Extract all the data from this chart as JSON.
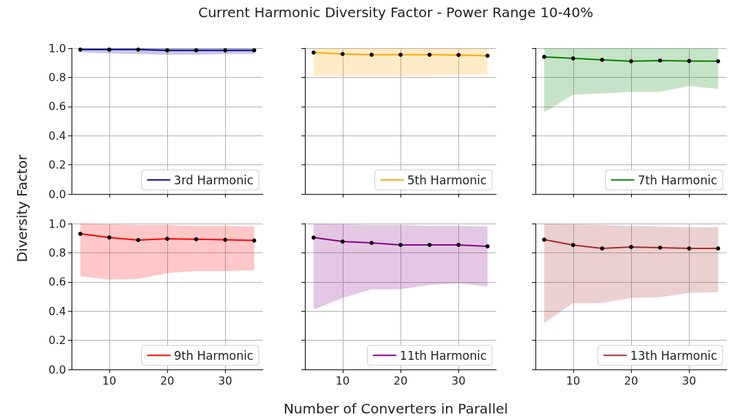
{
  "chart_data": [
    {
      "type": "line",
      "title": "Current Harmonic Diversity Factor - Power Range 10-40%",
      "ylabel": "Diversity Factor",
      "x": [
        5,
        10,
        15,
        20,
        25,
        30,
        35
      ],
      "xlim": [
        3.5,
        36.5
      ],
      "ylim": [
        0,
        1
      ],
      "xticks": [
        {
          "value": 10,
          "label": null
        },
        {
          "value": 20,
          "label": null
        },
        {
          "value": 30,
          "label": null
        }
      ],
      "yticks": [
        {
          "value": 0,
          "label": "0.0"
        },
        {
          "value": 0.2,
          "label": "0.2"
        },
        {
          "value": 0.4,
          "label": "0.4"
        },
        {
          "value": 0.6,
          "label": "0.6"
        },
        {
          "value": 0.8,
          "label": "0.8"
        },
        {
          "value": 1,
          "label": "1.0"
        }
      ],
      "grid": true,
      "legend": "bottom right",
      "marker": "circle",
      "tick_labels": "y",
      "series": [
        {
          "name": "3rd Harmonic",
          "color": "#00008b",
          "values": [
            0.99,
            0.99,
            0.99,
            0.985,
            0.985,
            0.985,
            0.985
          ],
          "lower": [
            0.97,
            0.965,
            0.96,
            0.955,
            0.955,
            0.96,
            0.96
          ],
          "upper": [
            1,
            1,
            1,
            1,
            1,
            1,
            1
          ]
        }
      ]
    },
    {
      "type": "line",
      "x": [
        5,
        10,
        15,
        20,
        25,
        30,
        35
      ],
      "xlim": [
        3.5,
        36.5
      ],
      "ylim": [
        0,
        1
      ],
      "xticks": [
        {
          "value": 10,
          "label": null
        },
        {
          "value": 20,
          "label": null
        },
        {
          "value": 30,
          "label": null
        }
      ],
      "yticks": [
        {
          "value": 0,
          "label": null
        },
        {
          "value": 0.2,
          "label": null
        },
        {
          "value": 0.4,
          "label": null
        },
        {
          "value": 0.6,
          "label": null
        },
        {
          "value": 0.8,
          "label": null
        },
        {
          "value": 1,
          "label": null
        }
      ],
      "grid": true,
      "legend": "bottom right",
      "marker": "circle",
      "tick_labels": false,
      "series": [
        {
          "name": "5th Harmonic",
          "color": "#ffa500",
          "values": [
            0.97,
            0.96,
            0.955,
            0.955,
            0.955,
            0.953,
            0.948
          ],
          "lower": [
            0.81,
            0.81,
            0.81,
            0.81,
            0.81,
            0.82,
            0.82
          ],
          "upper": [
            1,
            1,
            1,
            1,
            1,
            1,
            1
          ]
        }
      ]
    },
    {
      "type": "line",
      "x": [
        5,
        10,
        15,
        20,
        25,
        30,
        35
      ],
      "xlim": [
        3.5,
        36.5
      ],
      "ylim": [
        0,
        1
      ],
      "xticks": [
        {
          "value": 10,
          "label": null
        },
        {
          "value": 20,
          "label": null
        },
        {
          "value": 30,
          "label": null
        }
      ],
      "yticks": [
        {
          "value": 0,
          "label": null
        },
        {
          "value": 0.2,
          "label": null
        },
        {
          "value": 0.4,
          "label": null
        },
        {
          "value": 0.6,
          "label": null
        },
        {
          "value": 0.8,
          "label": null
        },
        {
          "value": 1,
          "label": null
        }
      ],
      "grid": true,
      "legend": "bottom right",
      "marker": "circle",
      "tick_labels": false,
      "series": [
        {
          "name": "7th Harmonic",
          "color": "#008000",
          "values": [
            0.94,
            0.93,
            0.92,
            0.91,
            0.915,
            0.912,
            0.91
          ],
          "lower": [
            0.56,
            0.68,
            0.69,
            0.7,
            0.7,
            0.74,
            0.72
          ],
          "upper": [
            1,
            1,
            1,
            1,
            1,
            1,
            1
          ]
        }
      ]
    },
    {
      "type": "line",
      "x": [
        5,
        10,
        15,
        20,
        25,
        30,
        35
      ],
      "xlim": [
        3.5,
        36.5
      ],
      "ylim": [
        0,
        1
      ],
      "xticks": [
        10,
        20,
        30
      ],
      "yticks": [
        {
          "value": 0,
          "label": "0.0"
        },
        {
          "value": 0.2,
          "label": "0.2"
        },
        {
          "value": 0.4,
          "label": "0.4"
        },
        {
          "value": 0.6,
          "label": "0.6"
        },
        {
          "value": 0.8,
          "label": "0.8"
        },
        {
          "value": 1,
          "label": "1.0"
        }
      ],
      "grid": true,
      "legend": "bottom right",
      "marker": "circle",
      "series": [
        {
          "name": "9th Harmonic",
          "color": "#ff0000",
          "values": [
            0.93,
            0.905,
            0.887,
            0.896,
            0.893,
            0.889,
            0.884
          ],
          "lower": [
            0.64,
            0.615,
            0.62,
            0.66,
            0.675,
            0.675,
            0.68
          ],
          "upper": [
            1,
            0.995,
            0.99,
            0.99,
            0.985,
            0.985,
            0.98
          ]
        }
      ]
    },
    {
      "type": "line",
      "xlabel": "Number of Converters in Parallel",
      "x": [
        5,
        10,
        15,
        20,
        25,
        30,
        35
      ],
      "xlim": [
        3.5,
        36.5
      ],
      "ylim": [
        0,
        1
      ],
      "xticks": [
        10,
        20,
        30
      ],
      "yticks": [
        {
          "value": 0,
          "label": null
        },
        {
          "value": 0.2,
          "label": null
        },
        {
          "value": 0.4,
          "label": null
        },
        {
          "value": 0.6,
          "label": null
        },
        {
          "value": 0.8,
          "label": null
        },
        {
          "value": 1,
          "label": null
        }
      ],
      "grid": true,
      "legend": "bottom right",
      "marker": "circle",
      "tick_labels": "x",
      "series": [
        {
          "name": "11th Harmonic",
          "color": "#800080",
          "values": [
            0.904,
            0.877,
            0.868,
            0.854,
            0.854,
            0.854,
            0.844
          ],
          "lower": [
            0.41,
            0.49,
            0.55,
            0.55,
            0.58,
            0.59,
            0.57
          ],
          "upper": [
            1,
            0.995,
            0.99,
            0.99,
            0.985,
            0.985,
            0.98
          ]
        }
      ]
    },
    {
      "type": "line",
      "x": [
        5,
        10,
        15,
        20,
        25,
        30,
        35
      ],
      "xlim": [
        3.5,
        36.5
      ],
      "ylim": [
        0,
        1
      ],
      "xticks": [
        10,
        20,
        30
      ],
      "yticks": [
        {
          "value": 0,
          "label": null
        },
        {
          "value": 0.2,
          "label": null
        },
        {
          "value": 0.4,
          "label": null
        },
        {
          "value": 0.6,
          "label": null
        },
        {
          "value": 0.8,
          "label": null
        },
        {
          "value": 1,
          "label": null
        }
      ],
      "grid": true,
      "legend": "bottom right",
      "marker": "circle",
      "tick_labels": "x",
      "series": [
        {
          "name": "13th Harmonic",
          "color": "#a52a2a",
          "values": [
            0.89,
            0.853,
            0.83,
            0.84,
            0.835,
            0.83,
            0.83
          ],
          "lower": [
            0.32,
            0.455,
            0.455,
            0.49,
            0.495,
            0.525,
            0.53
          ],
          "upper": [
            1,
            0.995,
            0.99,
            0.985,
            0.98,
            0.975,
            0.975
          ]
        }
      ]
    }
  ]
}
